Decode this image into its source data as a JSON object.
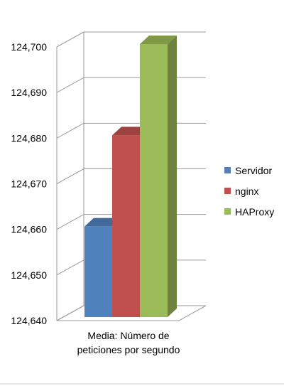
{
  "chart_data": {
    "type": "bar",
    "categories": [
      "Media: Número de peticiones por segundo"
    ],
    "category_lines": [
      "Media: Número de",
      "peticiones por segundo"
    ],
    "series": [
      {
        "name": "Servidor",
        "values": [
          124660
        ],
        "color": "#4f81bd"
      },
      {
        "name": "nginx",
        "values": [
          124680
        ],
        "color": "#c0504d"
      },
      {
        "name": "HAProxy",
        "values": [
          124700
        ],
        "color": "#9bbb59"
      }
    ],
    "ylim": [
      124640,
      124700
    ],
    "yticks": [
      "124,640",
      "124,650",
      "124,660",
      "124,670",
      "124,680",
      "124,690",
      "124,700"
    ],
    "grid": true,
    "legend": "right",
    "three_d": true
  }
}
